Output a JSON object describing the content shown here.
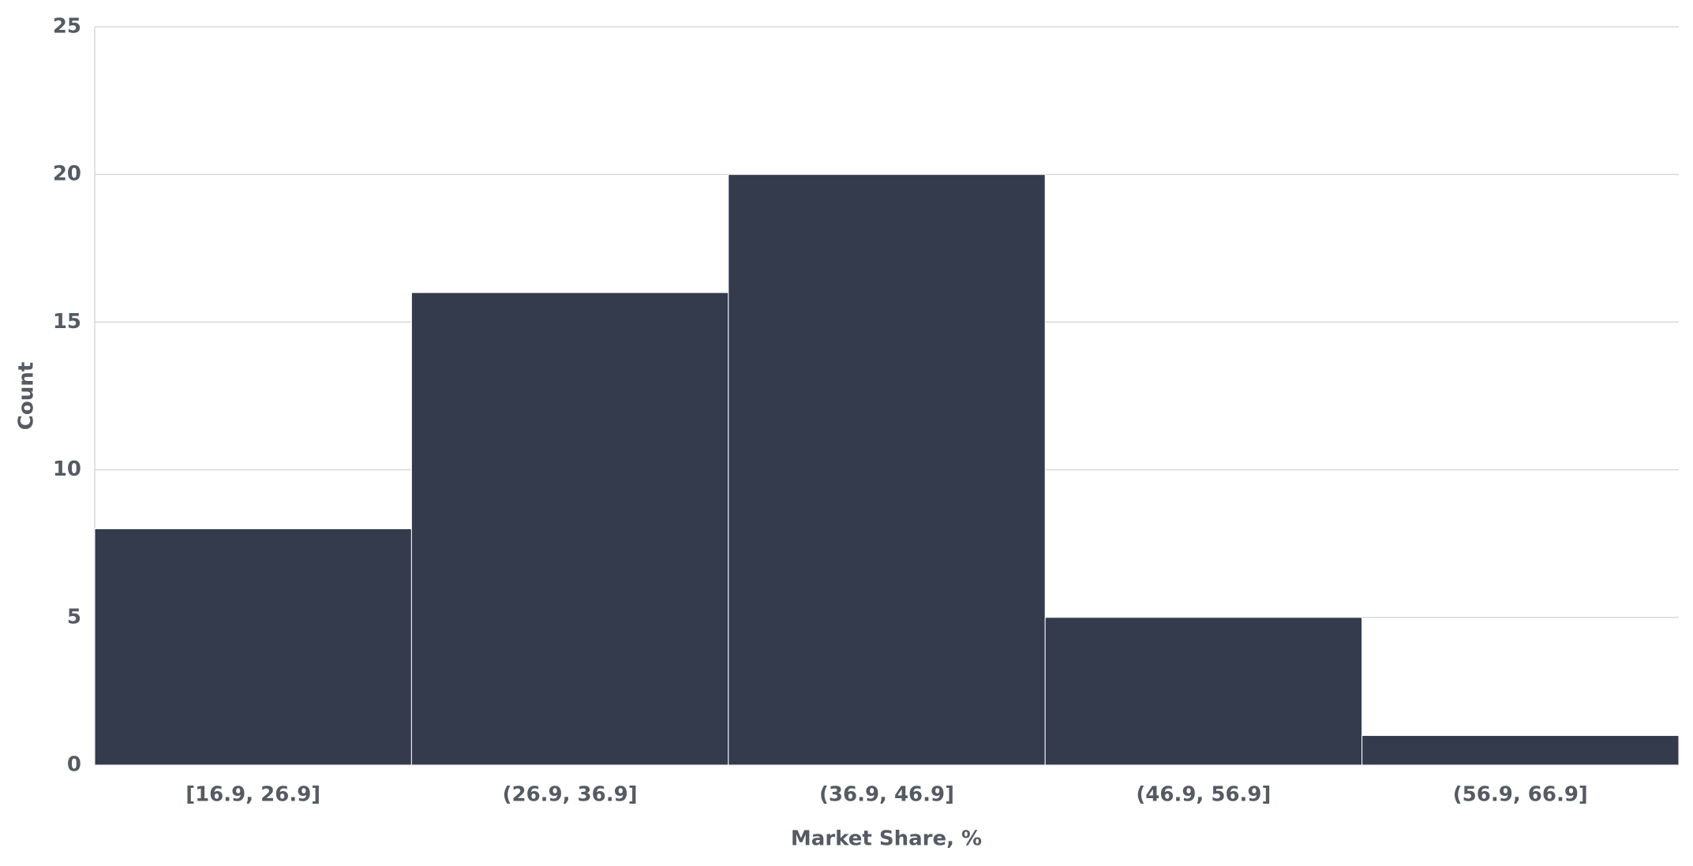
{
  "chart_data": {
    "type": "bar",
    "categories": [
      "[16.9, 26.9]",
      "(26.9, 36.9]",
      "(36.9, 46.9]",
      "(46.9, 56.9]",
      "(56.9, 66.9]"
    ],
    "values": [
      8,
      16,
      20,
      5,
      1
    ],
    "color": "#333b4d",
    "xlabel": "Market Share, %",
    "ylabel": "Count",
    "ylim": [
      0,
      25
    ],
    "yticks": [
      0,
      5,
      10,
      15,
      20,
      25
    ],
    "grid": true
  }
}
